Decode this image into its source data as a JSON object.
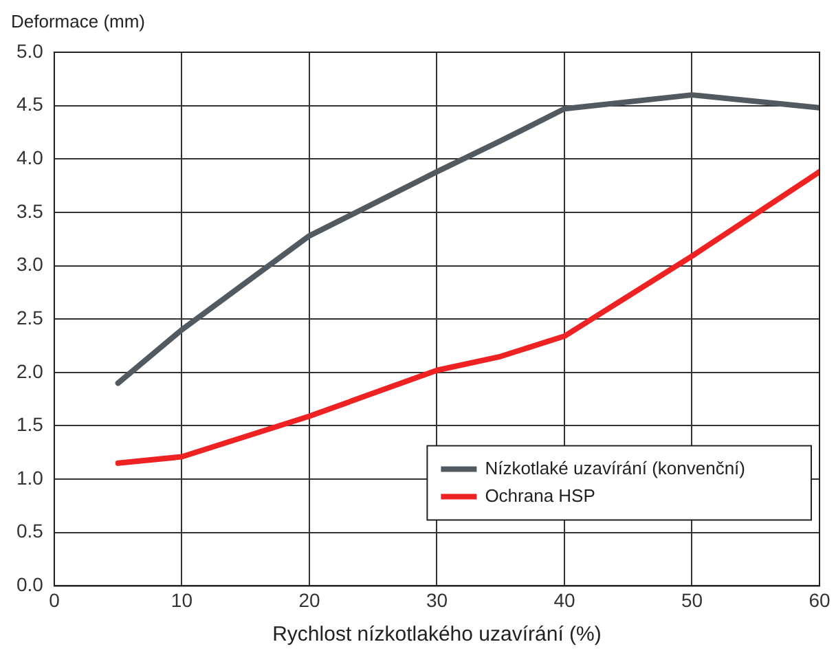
{
  "chart_data": {
    "type": "line",
    "ylabel": "Deformace (mm)",
    "xlabel": "Rychlost nízkotlakého uzavírání (%)",
    "x": [
      5,
      10,
      20,
      30,
      35,
      40,
      50,
      60
    ],
    "series": [
      {
        "name": "Nízkotlaké uzavírání (konvenční)",
        "color": "#505a60",
        "values": [
          1.9,
          2.4,
          3.28,
          3.88,
          4.17,
          4.47,
          4.6,
          4.48
        ]
      },
      {
        "name": "Ochrana HSP",
        "color": "#ee2222",
        "values": [
          1.15,
          1.21,
          1.59,
          2.02,
          2.15,
          2.34,
          3.09,
          3.88
        ]
      }
    ],
    "xlim": [
      0,
      60
    ],
    "xticks": [
      0,
      10,
      20,
      30,
      40,
      50,
      60
    ],
    "ylim": [
      0,
      5
    ],
    "yticks": [
      {
        "value": 0,
        "label": "0.0"
      },
      {
        "value": 0.5,
        "label": "0.5"
      },
      {
        "value": 1,
        "label": "1.0"
      },
      {
        "value": 1.5,
        "label": "1.5"
      },
      {
        "value": 2,
        "label": "2.0"
      },
      {
        "value": 2.5,
        "label": "2.5"
      },
      {
        "value": 3,
        "label": "3.0"
      },
      {
        "value": 3.5,
        "label": "3.5"
      },
      {
        "value": 4,
        "label": "4.0"
      },
      {
        "value": 4.5,
        "label": "4.5"
      },
      {
        "value": 5,
        "label": "5.0"
      }
    ],
    "grid": true,
    "legend": "bottom right",
    "marker": "none",
    "line_style": "solid"
  }
}
